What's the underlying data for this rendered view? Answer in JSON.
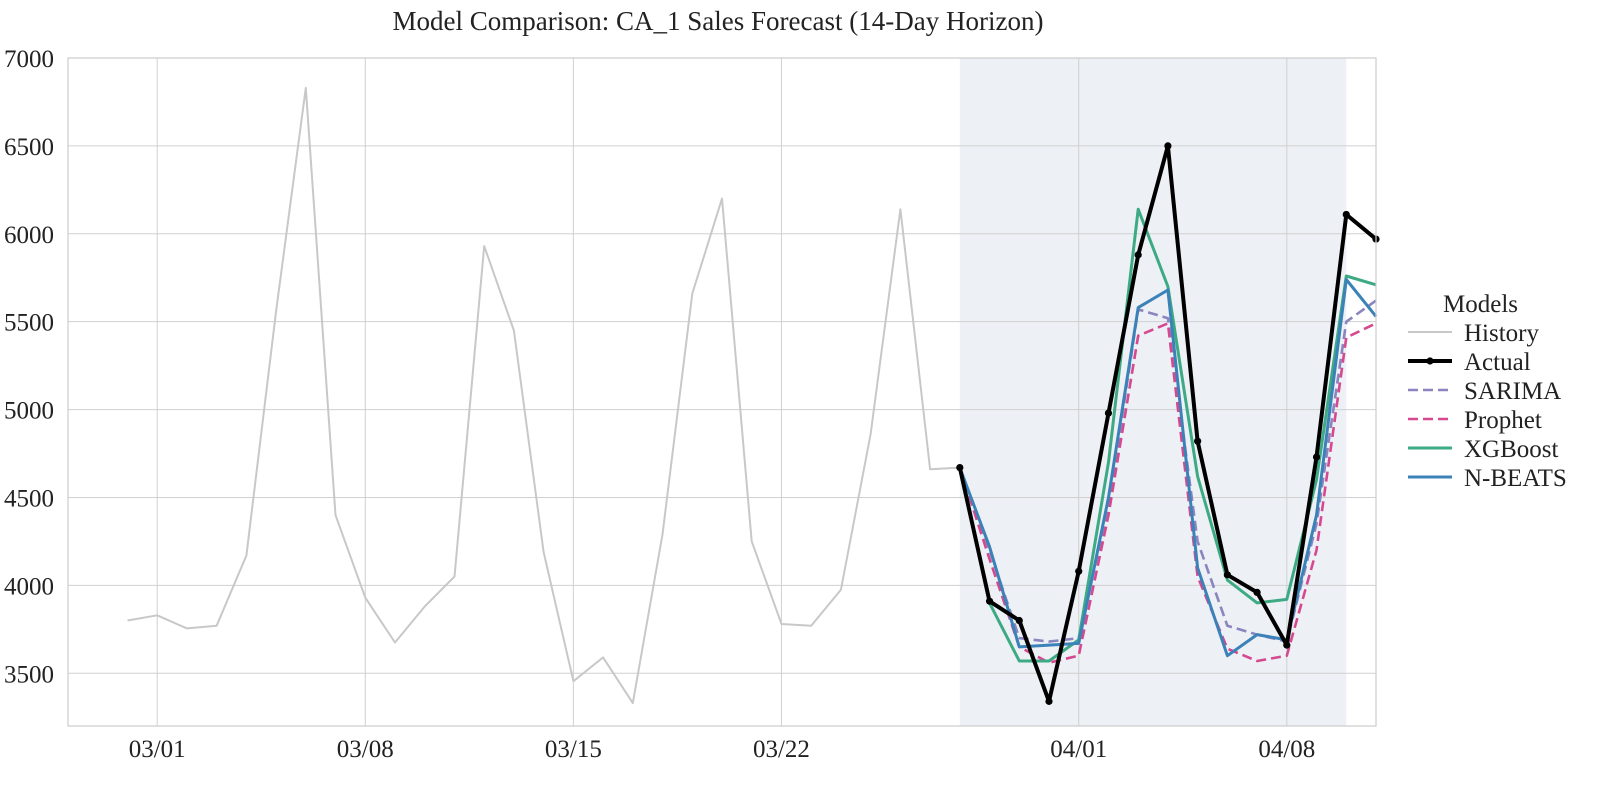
{
  "chart_data": {
    "type": "line",
    "title": "Model Comparison: CA_1 Sales Forecast (14-Day Horizon)",
    "xlabel": "",
    "ylabel": "",
    "x_range": [
      "2023-02-26",
      "2023-04-11"
    ],
    "ylim": [
      3200,
      7000
    ],
    "grid": true,
    "legend_title": "Models",
    "legend_placement": "right, outside plot",
    "x_ticks": [
      {
        "date": "2023-03-01",
        "label": "03/01"
      },
      {
        "date": "2023-03-08",
        "label": "03/08"
      },
      {
        "date": "2023-03-15",
        "label": "03/15"
      },
      {
        "date": "2023-03-22",
        "label": "03/22"
      },
      {
        "date": "2023-04-01",
        "label": "04/01"
      },
      {
        "date": "2023-04-08",
        "label": "04/08"
      }
    ],
    "y_ticks": [
      {
        "value": 3500,
        "label": "3500"
      },
      {
        "value": 4000,
        "label": "4000"
      },
      {
        "value": 4500,
        "label": "4500"
      },
      {
        "value": 5000,
        "label": "5000"
      },
      {
        "value": 5500,
        "label": "5500"
      },
      {
        "value": 6000,
        "label": "6000"
      },
      {
        "value": 6500,
        "label": "6500"
      },
      {
        "value": 7000,
        "label": "7000"
      }
    ],
    "forecast_window": [
      "2023-03-28",
      "2023-04-10"
    ],
    "series": [
      {
        "name": "History",
        "color": "#c8c8c8",
        "style": "solid",
        "x": [
          "2023-02-28",
          "2023-03-01",
          "2023-03-02",
          "2023-03-03",
          "2023-03-04",
          "2023-03-05",
          "2023-03-06",
          "2023-03-07",
          "2023-03-08",
          "2023-03-09",
          "2023-03-10",
          "2023-03-11",
          "2023-03-12",
          "2023-03-13",
          "2023-03-14",
          "2023-03-15",
          "2023-03-16",
          "2023-03-17",
          "2023-03-18",
          "2023-03-19",
          "2023-03-20",
          "2023-03-21",
          "2023-03-22",
          "2023-03-23",
          "2023-03-24",
          "2023-03-25",
          "2023-03-26",
          "2023-03-27",
          "2023-03-28"
        ],
        "y": [
          3800,
          3830,
          3755,
          3770,
          4170,
          5560,
          6830,
          4400,
          3930,
          3675,
          3880,
          4050,
          5930,
          5450,
          4190,
          3455,
          3590,
          3330,
          4290,
          5660,
          6200,
          4250,
          3780,
          3770,
          3975,
          4860,
          6140,
          4660,
          4670
        ]
      },
      {
        "name": "Actual",
        "color": "#000000",
        "style": "solid-markers",
        "x": [
          "2023-03-28",
          "2023-03-29",
          "2023-03-30",
          "2023-03-31",
          "2023-04-01",
          "2023-04-02",
          "2023-04-03",
          "2023-04-04",
          "2023-04-05",
          "2023-04-06",
          "2023-04-07",
          "2023-04-08",
          "2023-04-09",
          "2023-04-10",
          "2023-04-11"
        ],
        "y": [
          4670,
          3910,
          3800,
          3340,
          4080,
          4980,
          5880,
          6500,
          4820,
          4060,
          3960,
          3660,
          4730,
          6110,
          5970
        ]
      },
      {
        "name": "SARIMA",
        "color": "#8a85bf",
        "style": "dashed",
        "x": [
          "2023-03-28",
          "2023-03-29",
          "2023-03-30",
          "2023-03-31",
          "2023-04-01",
          "2023-04-02",
          "2023-04-03",
          "2023-04-04",
          "2023-04-05",
          "2023-04-06",
          "2023-04-07",
          "2023-04-08",
          "2023-04-09",
          "2023-04-10",
          "2023-04-11"
        ],
        "y": [
          4670,
          4200,
          3700,
          3680,
          3700,
          4450,
          5570,
          5520,
          4250,
          3770,
          3720,
          3680,
          4350,
          5500,
          5620
        ]
      },
      {
        "name": "Prophet",
        "color": "#d6488f",
        "style": "dashed",
        "x": [
          "2023-03-28",
          "2023-03-29",
          "2023-03-30",
          "2023-03-31",
          "2023-04-01",
          "2023-04-02",
          "2023-04-03",
          "2023-04-04",
          "2023-04-05",
          "2023-04-06",
          "2023-04-07",
          "2023-04-08",
          "2023-04-09",
          "2023-04-10",
          "2023-04-11"
        ],
        "y": [
          4670,
          4150,
          3650,
          3560,
          3600,
          4400,
          5420,
          5490,
          4050,
          3640,
          3570,
          3600,
          4200,
          5410,
          5490
        ]
      },
      {
        "name": "XGBoost",
        "color": "#3daa84",
        "style": "solid",
        "x": [
          "2023-03-28",
          "2023-03-29",
          "2023-03-30",
          "2023-03-31",
          "2023-04-01",
          "2023-04-02",
          "2023-04-03",
          "2023-04-04",
          "2023-04-05",
          "2023-04-06",
          "2023-04-07",
          "2023-04-08",
          "2023-04-09",
          "2023-04-10",
          "2023-04-11"
        ],
        "y": [
          4670,
          3900,
          3570,
          3570,
          3690,
          4700,
          6140,
          5700,
          4620,
          4030,
          3900,
          3920,
          4600,
          5760,
          5710
        ]
      },
      {
        "name": "N-BEATS",
        "color": "#3b82b8",
        "style": "solid",
        "x": [
          "2023-03-28",
          "2023-03-29",
          "2023-03-30",
          "2023-03-31",
          "2023-04-01",
          "2023-04-02",
          "2023-04-03",
          "2023-04-04",
          "2023-04-05",
          "2023-04-06",
          "2023-04-07",
          "2023-04-08",
          "2023-04-09",
          "2023-04-10",
          "2023-04-11"
        ],
        "y": [
          4670,
          4220,
          3650,
          3660,
          3670,
          4500,
          5580,
          5680,
          4100,
          3600,
          3720,
          3690,
          4400,
          5740,
          5530
        ]
      }
    ]
  }
}
